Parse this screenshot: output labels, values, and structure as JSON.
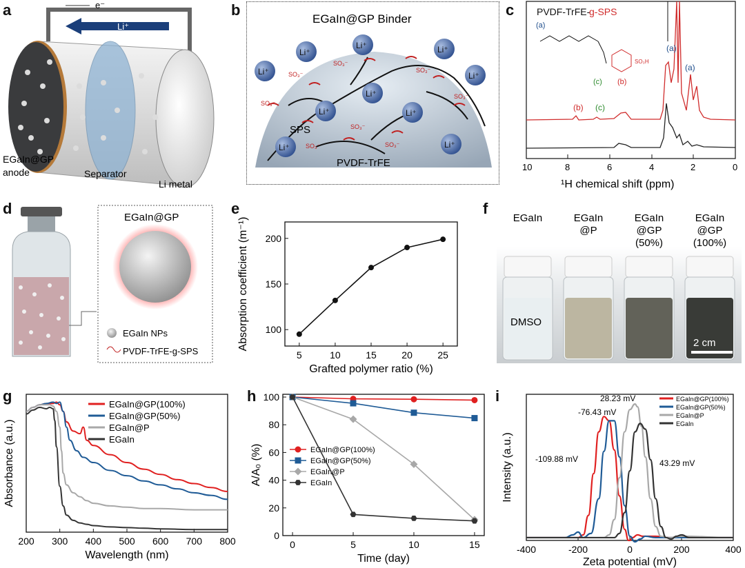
{
  "panel_labels": {
    "a": "a",
    "b": "b",
    "c": "c",
    "d": "d",
    "e": "e",
    "f": "f",
    "g": "g",
    "h": "h",
    "i": "i"
  },
  "panel_a": {
    "electron": "e⁻",
    "ion": "Li⁺",
    "anode_line1": "EGaIn@GP",
    "anode_line2": "anode",
    "separator": "Separator",
    "li_metal": "Li metal",
    "colors": {
      "anode": "#3a3b3d",
      "separator": "#8fb3d3",
      "arrow": "#1b3f7a"
    }
  },
  "panel_b": {
    "title": "EGaIn@GP Binder",
    "li_label": "Li⁺",
    "so3_label": "SO₃⁻",
    "sps_label": "SPS",
    "pvdf_label": "PVDF-TrFE"
  },
  "panel_c": {
    "title_black": "PVDF-TrFE-",
    "title_red": "g-SPS",
    "struct_a": "(a)",
    "struct_b": "(b)",
    "struct_c": "(c)",
    "peak_labels": [
      {
        "text": "(a)",
        "color": "#1f4e8c"
      },
      {
        "text": "(a)",
        "color": "#1f4e8c"
      },
      {
        "text": "(b)",
        "color": "#d02b2b"
      },
      {
        "text": "(c)",
        "color": "#2e8b2e"
      }
    ],
    "so3h": "SO₃H",
    "xticks": [
      "10",
      "8",
      "6",
      "4",
      "2",
      "0"
    ],
    "xlabel": "¹H chemical shift (ppm)",
    "colors": {
      "red": "#d02b2b",
      "black": "#222222"
    }
  },
  "panel_d": {
    "title": "EGaIn@GP",
    "legend_np": "EGaIn NPs",
    "legend_polymer": "PVDF-TrFE-g-SPS"
  },
  "panel_f": {
    "labels": [
      [
        "EGaIn"
      ],
      [
        "EGaIn",
        "@P"
      ],
      [
        "EGaIn",
        "@GP",
        "(50%)"
      ],
      [
        "EGaIn",
        "@GP",
        "(100%)"
      ]
    ],
    "dmso": "DMSO",
    "scale": "2 cm",
    "colors": [
      "#e8eef0",
      "#b8b29c",
      "#5a5a50",
      "#2e302c"
    ]
  },
  "chart_data": [
    {
      "id": "e",
      "type": "line",
      "x": [
        5,
        10,
        15,
        20,
        25
      ],
      "values": [
        95,
        132,
        168,
        190,
        199
      ],
      "xlabel": "Grafted polymer ratio (%)",
      "ylabel": "Absorption coefficient (m⁻¹)",
      "xticks": [
        5,
        10,
        15,
        20,
        25
      ],
      "yticks": [
        100,
        150,
        200
      ],
      "xlim": [
        3,
        27
      ],
      "ylim": [
        82,
        218
      ],
      "color": "#111111"
    },
    {
      "id": "g",
      "type": "line",
      "xlabel": "Wavelength (nm)",
      "ylabel": "Absorbance (a.u.)",
      "xticks": [
        200,
        300,
        400,
        500,
        600,
        700,
        800
      ],
      "xlim": [
        200,
        800
      ],
      "ylim": [
        0,
        1.05
      ],
      "series": [
        {
          "name": "EGaIn@GP(100%)",
          "color": "#e02020",
          "x": [
            200,
            220,
            240,
            260,
            280,
            290,
            300,
            310,
            320,
            340,
            360,
            370,
            380,
            400,
            450,
            500,
            550,
            600,
            650,
            700,
            750,
            800
          ],
          "values": [
            0.92,
            0.95,
            0.97,
            0.98,
            0.98,
            0.99,
            0.97,
            0.92,
            0.84,
            0.77,
            0.75,
            0.8,
            0.7,
            0.66,
            0.59,
            0.53,
            0.48,
            0.44,
            0.4,
            0.37,
            0.34,
            0.31
          ]
        },
        {
          "name": "EGaIn@GP(50%)",
          "color": "#1f5b96",
          "x": [
            200,
            220,
            240,
            260,
            280,
            290,
            300,
            310,
            320,
            330,
            350,
            370,
            400,
            450,
            500,
            550,
            600,
            650,
            700,
            750,
            800
          ],
          "values": [
            0.92,
            0.95,
            0.97,
            0.98,
            0.99,
            0.98,
            0.99,
            0.92,
            0.8,
            0.7,
            0.62,
            0.57,
            0.53,
            0.47,
            0.43,
            0.39,
            0.36,
            0.33,
            0.3,
            0.28,
            0.25
          ]
        },
        {
          "name": "EGaIn@P",
          "color": "#a8a8a8",
          "x": [
            200,
            220,
            240,
            260,
            270,
            280,
            290,
            300,
            305,
            310,
            320,
            340,
            360,
            380,
            400,
            450,
            500,
            550,
            600,
            700,
            800
          ],
          "values": [
            0.92,
            0.95,
            0.97,
            0.97,
            0.97,
            0.96,
            0.92,
            0.8,
            0.62,
            0.45,
            0.36,
            0.3,
            0.27,
            0.24,
            0.22,
            0.2,
            0.19,
            0.18,
            0.18,
            0.17,
            0.17
          ]
        },
        {
          "name": "EGaIn",
          "color": "#333333",
          "x": [
            200,
            220,
            240,
            260,
            270,
            280,
            285,
            290,
            300,
            310,
            320,
            340,
            360,
            380,
            400,
            450,
            500,
            550,
            600,
            700,
            800
          ],
          "values": [
            0.9,
            0.93,
            0.95,
            0.94,
            0.95,
            0.94,
            0.85,
            0.65,
            0.35,
            0.2,
            0.13,
            0.09,
            0.07,
            0.06,
            0.05,
            0.04,
            0.035,
            0.03,
            0.025,
            0.02,
            0.02
          ]
        }
      ]
    },
    {
      "id": "h",
      "type": "line",
      "xlabel": "Time (day)",
      "ylabel": "A/A₀ (%)",
      "xticks": [
        0,
        5,
        10,
        15
      ],
      "yticks": [
        0,
        20,
        40,
        60,
        80,
        100
      ],
      "xlim": [
        -0.8,
        15.8
      ],
      "ylim": [
        0,
        102
      ],
      "series": [
        {
          "name": "EGaIn@GP(100%)",
          "color": "#e02020",
          "marker": "circle",
          "x": [
            0,
            5,
            10,
            15
          ],
          "values": [
            100,
            98.7,
            98.4,
            97.8
          ]
        },
        {
          "name": "EGaIn@GP(50%)",
          "color": "#1f5b96",
          "marker": "square",
          "x": [
            0,
            5,
            10,
            15
          ],
          "values": [
            100,
            95.5,
            88.7,
            84.8
          ]
        },
        {
          "name": "EGaIn@P",
          "color": "#a8a8a8",
          "marker": "diamond",
          "x": [
            0,
            5,
            10,
            15
          ],
          "values": [
            100,
            84,
            51.5,
            11.5
          ]
        },
        {
          "name": "EGaIn",
          "color": "#333333",
          "marker": "hexagon",
          "x": [
            0,
            5,
            10,
            15
          ],
          "values": [
            100,
            15.3,
            12.5,
            10.6
          ]
        }
      ]
    },
    {
      "id": "i",
      "type": "line",
      "xlabel": "Zeta potential (mV)",
      "ylabel": "Intensity (a.u.)",
      "xticks": [
        -400,
        -200,
        0,
        200,
        400
      ],
      "xlim": [
        -400,
        400
      ],
      "ylim": [
        0,
        1.05
      ],
      "annotations": [
        "28.23 mV",
        "-76.43 mV",
        "-109.88 mV",
        "43.29 mV"
      ],
      "series": [
        {
          "name": "EGaIn@GP(100%)",
          "color": "#e02020",
          "x": [
            -400,
            -250,
            -200,
            -180,
            -160,
            -140,
            -120,
            -100,
            -80,
            -60,
            -40,
            -20,
            -5,
            0,
            10,
            30,
            50,
            100,
            150,
            200,
            400
          ],
          "values": [
            0.02,
            0.02,
            0.02,
            0.04,
            0.18,
            0.48,
            0.78,
            0.89,
            0.86,
            0.65,
            0.32,
            0.08,
            0.0,
            0.0,
            0.02,
            0.04,
            0.03,
            0.03,
            0.02,
            0.02,
            0.02
          ]
        },
        {
          "name": "EGaIn@GP(50%)",
          "color": "#1f5b96",
          "x": [
            -400,
            -250,
            -220,
            -200,
            -180,
            -150,
            -120,
            -100,
            -80,
            -60,
            -40,
            -20,
            0,
            20,
            40,
            60,
            100,
            150,
            200,
            400
          ],
          "values": [
            0.02,
            0.02,
            0.04,
            0.06,
            0.02,
            0.05,
            0.3,
            0.64,
            0.86,
            0.86,
            0.6,
            0.25,
            0.03,
            -0.01,
            0.01,
            0.03,
            0.02,
            0.02,
            0.02,
            0.02
          ]
        },
        {
          "name": "EGaIn@P",
          "color": "#a8a8a8",
          "x": [
            -400,
            -100,
            -80,
            -60,
            -40,
            -20,
            0,
            20,
            30,
            45,
            60,
            80,
            100,
            120,
            150,
            200,
            400
          ],
          "values": [
            0.02,
            0.02,
            0.04,
            0.15,
            0.45,
            0.78,
            0.94,
            0.98,
            0.96,
            0.82,
            0.6,
            0.3,
            0.1,
            0.03,
            0.02,
            0.03,
            0.02
          ]
        },
        {
          "name": "EGaIn",
          "color": "#333333",
          "x": [
            -400,
            -60,
            -40,
            -20,
            0,
            20,
            40,
            60,
            80,
            100,
            120,
            140,
            160,
            180,
            200,
            230,
            400
          ],
          "values": [
            0.02,
            0.02,
            0.05,
            0.2,
            0.5,
            0.78,
            0.84,
            0.8,
            0.58,
            0.3,
            0.1,
            0.02,
            0.01,
            0.03,
            0.04,
            0.02,
            0.02
          ]
        }
      ]
    }
  ]
}
